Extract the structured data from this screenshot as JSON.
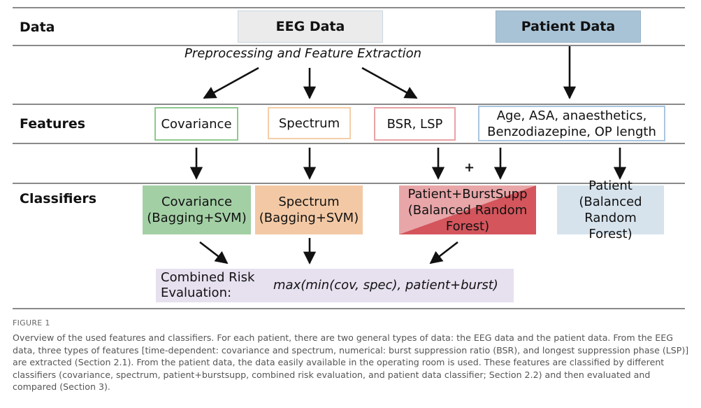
{
  "rows": {
    "data": "Data",
    "features": "Features",
    "classifiers": "Classifiers"
  },
  "sources": {
    "eeg": "EEG Data",
    "patient": "Patient Data"
  },
  "preprocessing": "Preprocessing and Feature Extraction",
  "features": {
    "covariance": "Covariance",
    "spectrum": "Spectrum",
    "bsr_lsp": "BSR, LSP",
    "patient_line1": "Age, ASA, anaesthetics,",
    "patient_line2": "Benzodiazepine, OP length"
  },
  "plus": "+",
  "classifiers": {
    "cov_line1": "Covariance",
    "cov_line2": "(Bagging+SVM)",
    "spec_line1": "Spectrum",
    "spec_line2": "(Bagging+SVM)",
    "burst_line1": "Patient+BurstSupp",
    "burst_line2": "(Balanced Random",
    "burst_line3": "Forest)",
    "patient_line1": "Patient",
    "patient_line2": "(Balanced Random",
    "patient_line3": "Forest)"
  },
  "combined": {
    "label_line1": "Combined Risk",
    "label_line2": "Evaluation:",
    "formula": "max(min(cov, spec), patient+burst)"
  },
  "figure": {
    "title": "FIGURE 1",
    "caption": "Overview of the used features and classifiers. For each patient, there are two general types of data: the EEG data and the patient data. From the EEG data, three types of features [time-dependent: covariance and spectrum, numerical: burst suppression ratio (BSR), and longest suppression phase (LSP)] are extracted (Section 2.1). From the patient data, the data easily available in the operating room is used. These features are classified by different classifiers (covariance, spectrum, patient+burstsupp, combined risk evaluation, and patient data classifier; Section 2.2) and then evaluated and compared (Section 3)."
  },
  "colors": {
    "eeg_fill": "#ebebeb",
    "patient_fill": "#a9c3d6",
    "cov_border": "#8fca8f",
    "spec_border": "#f5cfa8",
    "bsr_border": "#e9a3a6",
    "pat_border": "#a9c6df",
    "cov_fill": "#a3cfa5",
    "spec_fill": "#f3c9a5",
    "burst_fill_dark": "#d4555c",
    "burst_fill_light": "#e8a6a8",
    "patient_cls_fill": "#d6e3ed",
    "combined_fill": "#e6e0ef"
  }
}
